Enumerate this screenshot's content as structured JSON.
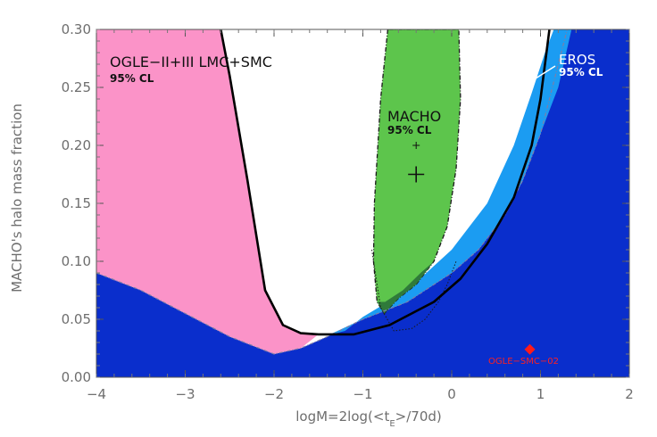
{
  "chart_data": {
    "type": "area",
    "xlabel": "logM=2log(<t",
    "xlabel_sub": "E",
    "xlabel_tail": ">/70d)",
    "ylabel": "MACHO's halo mass fraction",
    "xlim": [
      -4,
      2
    ],
    "ylim": [
      0,
      0.3
    ],
    "x_ticks": [
      "−4",
      "−3",
      "−2",
      "−1",
      "0",
      "1",
      "2"
    ],
    "y_ticks": [
      "0.00",
      "0.05",
      "0.10",
      "0.15",
      "0.20",
      "0.25",
      "0.30"
    ],
    "x_tick_values": [
      -4,
      -3,
      -2,
      -1,
      0,
      1,
      2
    ],
    "y_tick_values": [
      0,
      0.05,
      0.1,
      0.15,
      0.2,
      0.25,
      0.3
    ],
    "colors": {
      "ogle_excluded": "#0a2ecc",
      "pink_region": "#fb93c8",
      "eros_region": "#1b9cf2",
      "macho_region": "#5dc54c",
      "macho_overlap": "#2f7a3a",
      "ogle_point": "#ff1a1a"
    },
    "regions": {
      "ogle_excluded_upper_boundary": [
        [
          -4.0,
          0.09
        ],
        [
          -3.5,
          0.075
        ],
        [
          -3.0,
          0.055
        ],
        [
          -2.5,
          0.035
        ],
        [
          -2.0,
          0.02
        ],
        [
          -1.7,
          0.025
        ],
        [
          -1.4,
          0.035
        ],
        [
          -1.0,
          0.05
        ],
        [
          -0.5,
          0.065
        ],
        [
          -0.2,
          0.08
        ],
        [
          0.0,
          0.09
        ],
        [
          0.3,
          0.11
        ],
        [
          0.6,
          0.14
        ],
        [
          0.8,
          0.17
        ],
        [
          1.0,
          0.21
        ],
        [
          1.1,
          0.24
        ],
        [
          1.2,
          0.27
        ],
        [
          1.3,
          0.3
        ]
      ],
      "pink_boundary": [
        [
          -2.6,
          0.3
        ],
        [
          -2.5,
          0.26
        ],
        [
          -2.3,
          0.17
        ],
        [
          -2.1,
          0.075
        ],
        [
          -1.9,
          0.045
        ],
        [
          -1.7,
          0.038
        ],
        [
          -1.5,
          0.037
        ]
      ],
      "eros_upper_boundary": [
        [
          -1.4,
          0.036
        ],
        [
          -1.2,
          0.04
        ],
        [
          -1.0,
          0.052
        ],
        [
          -0.5,
          0.075
        ],
        [
          0.0,
          0.11
        ],
        [
          0.4,
          0.15
        ],
        [
          0.7,
          0.2
        ],
        [
          0.9,
          0.245
        ],
        [
          1.05,
          0.28
        ],
        [
          1.15,
          0.3
        ]
      ],
      "eros_lower_boundary": [
        [
          1.35,
          0.3
        ],
        [
          1.2,
          0.25
        ],
        [
          1.15,
          0.24
        ],
        [
          1.0,
          0.21
        ],
        [
          0.8,
          0.17
        ],
        [
          0.6,
          0.14
        ],
        [
          0.3,
          0.11
        ],
        [
          0.0,
          0.09
        ],
        [
          -0.2,
          0.08
        ],
        [
          -0.5,
          0.065
        ],
        [
          -1.0,
          0.05
        ],
        [
          -1.4,
          0.036
        ]
      ],
      "macho_contour": [
        [
          -0.72,
          0.3
        ],
        [
          -0.8,
          0.24
        ],
        [
          -0.87,
          0.15
        ],
        [
          -0.88,
          0.1
        ],
        [
          -0.84,
          0.065
        ],
        [
          -0.76,
          0.055
        ],
        [
          -0.6,
          0.068
        ],
        [
          -0.4,
          0.08
        ],
        [
          -0.2,
          0.1
        ],
        [
          -0.05,
          0.13
        ],
        [
          0.05,
          0.18
        ],
        [
          0.1,
          0.24
        ],
        [
          0.08,
          0.3
        ]
      ],
      "macho_dotted_contour": [
        [
          -0.9,
          0.11
        ],
        [
          -0.8,
          0.06
        ],
        [
          -0.65,
          0.04
        ],
        [
          -0.45,
          0.042
        ],
        [
          -0.3,
          0.05
        ],
        [
          -0.15,
          0.065
        ],
        [
          -0.05,
          0.08
        ],
        [
          0.05,
          0.1
        ]
      ],
      "ogle_limit_curve": [
        [
          -2.6,
          0.3
        ],
        [
          -2.5,
          0.26
        ],
        [
          -2.3,
          0.17
        ],
        [
          -2.1,
          0.075
        ],
        [
          -1.9,
          0.045
        ],
        [
          -1.7,
          0.038
        ],
        [
          -1.5,
          0.037
        ],
        [
          -1.1,
          0.037
        ],
        [
          -0.7,
          0.045
        ],
        [
          -0.2,
          0.065
        ],
        [
          0.1,
          0.085
        ],
        [
          0.4,
          0.115
        ],
        [
          0.7,
          0.155
        ],
        [
          0.9,
          0.2
        ],
        [
          1.0,
          0.24
        ],
        [
          1.05,
          0.27
        ],
        [
          1.1,
          0.3
        ]
      ]
    },
    "markers": {
      "macho_best_fit": [
        -0.4,
        0.175
      ],
      "macho_secondary": [
        -0.4,
        0.2
      ],
      "ogle_smc_02": [
        0.88,
        0.024
      ]
    },
    "annotations": {
      "ogle_title": "OGLE−II+III LMC+SMC",
      "ogle_cl": "95% CL",
      "macho_title": "MACHO",
      "macho_cl": "95% CL",
      "eros_title": "EROS",
      "eros_cl": "95% CL",
      "ogle_point_label": "OGLE−SMC−02"
    }
  }
}
